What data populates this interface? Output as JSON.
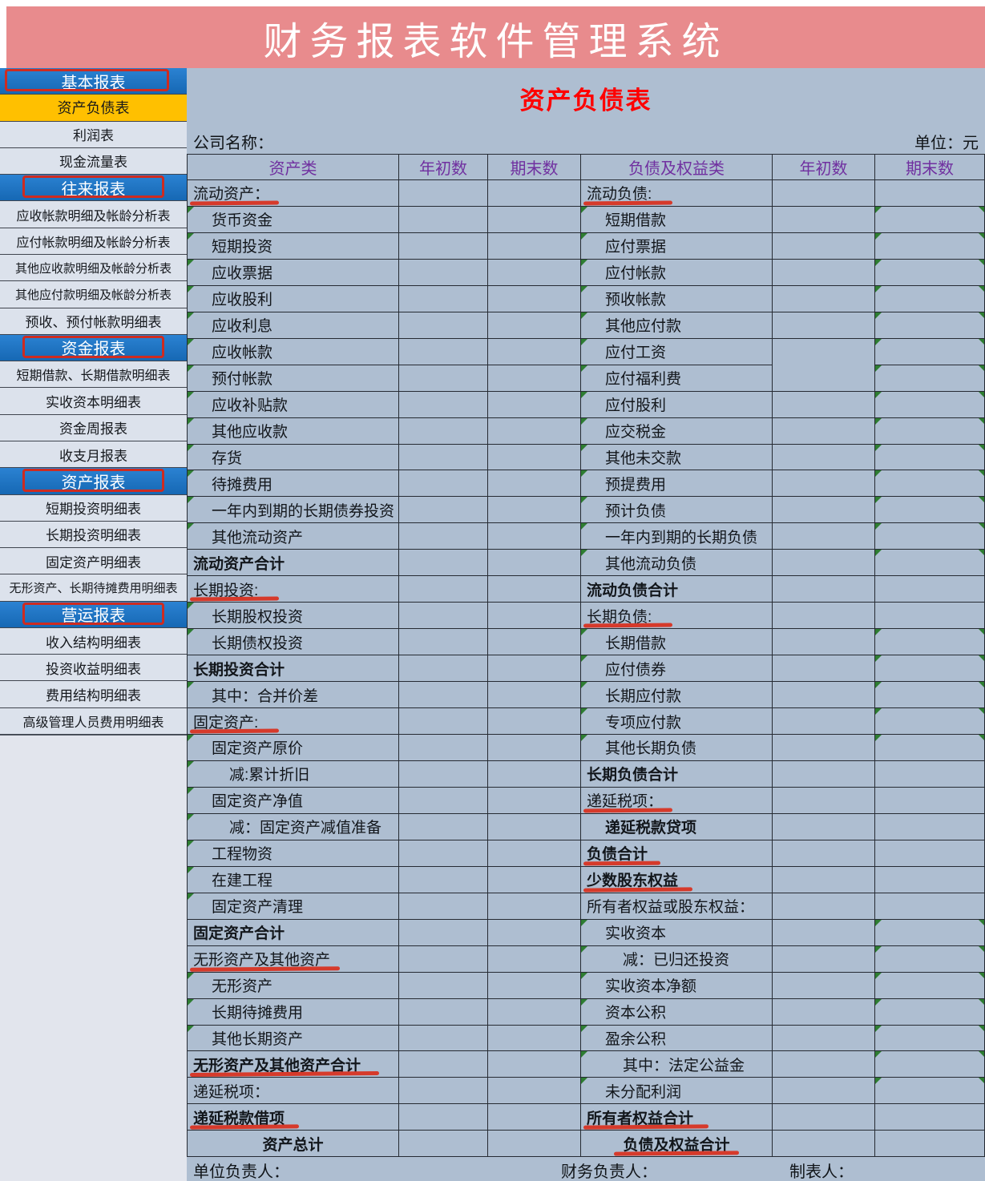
{
  "banner": {
    "title": "财务报表软件管理系统"
  },
  "sidebar": {
    "items": [
      {
        "label": "基本报表",
        "type": "section"
      },
      {
        "label": "资产负债表",
        "type": "active"
      },
      {
        "label": "利润表",
        "type": "item"
      },
      {
        "label": "现金流量表",
        "type": "item"
      },
      {
        "label": "往来报表",
        "type": "section"
      },
      {
        "label": "应收帐款明细及帐龄分析表",
        "type": "item"
      },
      {
        "label": "应付帐款明细及帐龄分析表",
        "type": "item"
      },
      {
        "label": "其他应收款明细及帐龄分析表",
        "type": "item"
      },
      {
        "label": "其他应付款明细及帐龄分析表",
        "type": "item"
      },
      {
        "label": "预收、预付帐款明细表",
        "type": "item"
      },
      {
        "label": "资金报表",
        "type": "section"
      },
      {
        "label": "短期借款、长期借款明细表",
        "type": "item"
      },
      {
        "label": "实收资本明细表",
        "type": "item"
      },
      {
        "label": "资金周报表",
        "type": "item"
      },
      {
        "label": "收支月报表",
        "type": "item"
      },
      {
        "label": "资产报表",
        "type": "section"
      },
      {
        "label": "短期投资明细表",
        "type": "item"
      },
      {
        "label": "长期投资明细表",
        "type": "item"
      },
      {
        "label": "固定资产明细表",
        "type": "item"
      },
      {
        "label": "无形资产、长期待摊费用明细表",
        "type": "item"
      },
      {
        "label": "营运报表",
        "type": "section"
      },
      {
        "label": "收入结构明细表",
        "type": "item"
      },
      {
        "label": "投资收益明细表",
        "type": "item"
      },
      {
        "label": "费用结构明细表",
        "type": "item"
      },
      {
        "label": "高级管理人员费用明细表",
        "type": "item"
      }
    ]
  },
  "sheet": {
    "title": "资产负债表",
    "company_label": "公司名称：",
    "unit_label": "单位：元",
    "columns": [
      "资产类",
      "年初数",
      "期末数",
      "负债及权益类",
      "年初数",
      "期末数"
    ],
    "rows": [
      {
        "asset": {
          "label": "流动资产：",
          "underline": true
        },
        "liability": {
          "label": "流动负债:",
          "underline": true
        }
      },
      {
        "asset": {
          "label": "货币资金",
          "indent": 1,
          "marker": true
        },
        "liability": {
          "label": "短期借款",
          "indent": 1,
          "marker": true
        }
      },
      {
        "asset": {
          "label": "短期投资",
          "indent": 1,
          "marker": true
        },
        "liability": {
          "label": "应付票据",
          "indent": 1,
          "marker": true
        }
      },
      {
        "asset": {
          "label": "应收票据",
          "indent": 1,
          "marker": true
        },
        "liability": {
          "label": "应付帐款",
          "indent": 1,
          "marker": true
        }
      },
      {
        "asset": {
          "label": "应收股利",
          "indent": 1,
          "marker": true
        },
        "liability": {
          "label": "预收帐款",
          "indent": 1,
          "marker": true
        }
      },
      {
        "asset": {
          "label": "应收利息",
          "indent": 1,
          "marker": true
        },
        "liability": {
          "label": "其他应付款",
          "indent": 1,
          "marker": true
        }
      },
      {
        "asset": {
          "label": "应收帐款",
          "indent": 1,
          "marker": true
        },
        "liability": {
          "label": "应付工资",
          "indent": 1,
          "marker": true,
          "mergeDown": true
        }
      },
      {
        "asset": {
          "label": "预付帐款",
          "indent": 1,
          "marker": true
        },
        "liability": {
          "label": "应付福利费",
          "indent": 1,
          "marker": true
        }
      },
      {
        "asset": {
          "label": "应收补贴款",
          "indent": 1,
          "marker": true
        },
        "liability": {
          "label": "应付股利",
          "indent": 1,
          "marker": true
        }
      },
      {
        "asset": {
          "label": "其他应收款",
          "indent": 1,
          "marker": true
        },
        "liability": {
          "label": "应交税金",
          "indent": 1,
          "marker": true
        }
      },
      {
        "asset": {
          "label": "存货",
          "indent": 1,
          "marker": true
        },
        "liability": {
          "label": "其他未交款",
          "indent": 1,
          "marker": true
        }
      },
      {
        "asset": {
          "label": "待摊费用",
          "indent": 1,
          "marker": true
        },
        "liability": {
          "label": "预提费用",
          "indent": 1,
          "marker": true
        }
      },
      {
        "asset": {
          "label": "一年内到期的长期债券投资",
          "indent": 1,
          "marker": true
        },
        "liability": {
          "label": "预计负债",
          "indent": 1,
          "marker": true
        }
      },
      {
        "asset": {
          "label": "其他流动资产",
          "indent": 1,
          "marker": true
        },
        "liability": {
          "label": "一年内到期的长期负债",
          "indent": 1,
          "marker": true
        }
      },
      {
        "asset": {
          "label": "流动资产合计",
          "bold": true
        },
        "liability": {
          "label": "其他流动负债",
          "indent": 1,
          "marker": true
        }
      },
      {
        "asset": {
          "label": "长期投资:",
          "underline": true
        },
        "liability": {
          "label": "流动负债合计",
          "bold": true
        }
      },
      {
        "asset": {
          "label": "长期股权投资",
          "indent": 1,
          "marker": true
        },
        "liability": {
          "label": "长期负债:",
          "underline": true
        }
      },
      {
        "asset": {
          "label": "长期债权投资",
          "indent": 1,
          "marker": true
        },
        "liability": {
          "label": "长期借款",
          "indent": 1,
          "marker": true
        }
      },
      {
        "asset": {
          "label": "长期投资合计",
          "bold": true
        },
        "liability": {
          "label": "应付债券",
          "indent": 1,
          "marker": true
        }
      },
      {
        "asset": {
          "label": "其中：合并价差",
          "indent": 1,
          "marker": true
        },
        "liability": {
          "label": "长期应付款",
          "indent": 1,
          "marker": true
        }
      },
      {
        "asset": {
          "label": "固定资产:",
          "underline": true
        },
        "liability": {
          "label": "专项应付款",
          "indent": 1,
          "marker": true
        }
      },
      {
        "asset": {
          "label": "固定资产原价",
          "indent": 1,
          "marker": true
        },
        "liability": {
          "label": "其他长期负债",
          "indent": 1,
          "marker": true
        }
      },
      {
        "asset": {
          "label": "减:累计折旧",
          "indent": 2,
          "marker": true
        },
        "liability": {
          "label": "长期负债合计",
          "bold": true
        }
      },
      {
        "asset": {
          "label": "固定资产净值",
          "indent": 1,
          "marker": true
        },
        "liability": {
          "label": "递延税项：",
          "underline": true
        }
      },
      {
        "asset": {
          "label": "减：固定资产减值准备",
          "indent": 2,
          "marker": true
        },
        "liability": {
          "label": "递延税款贷项",
          "indent": 1,
          "bold": true
        }
      },
      {
        "asset": {
          "label": "工程物资",
          "indent": 1,
          "marker": true
        },
        "liability": {
          "label": "负债合计",
          "bold": true,
          "underline": true
        }
      },
      {
        "asset": {
          "label": "在建工程",
          "indent": 1,
          "marker": true
        },
        "liability": {
          "label": "少数股东权益",
          "bold": true,
          "underline": true
        }
      },
      {
        "asset": {
          "label": "固定资产清理",
          "indent": 1,
          "marker": true
        },
        "liability": {
          "label": "所有者权益或股东权益："
        }
      },
      {
        "asset": {
          "label": "固定资产合计",
          "bold": true
        },
        "liability": {
          "label": "实收资本",
          "indent": 1,
          "marker": true
        }
      },
      {
        "asset": {
          "label": "无形资产及其他资产",
          "underline": true
        },
        "liability": {
          "label": "减：已归还投资",
          "indent": 2,
          "marker": true
        }
      },
      {
        "asset": {
          "label": "无形资产",
          "indent": 1,
          "marker": true
        },
        "liability": {
          "label": "实收资本净额",
          "indent": 1,
          "marker": true
        }
      },
      {
        "asset": {
          "label": "长期待摊费用",
          "indent": 1,
          "marker": true
        },
        "liability": {
          "label": "资本公积",
          "indent": 1,
          "marker": true
        }
      },
      {
        "asset": {
          "label": "其他长期资产",
          "indent": 1,
          "marker": true
        },
        "liability": {
          "label": "盈余公积",
          "indent": 1,
          "marker": true
        }
      },
      {
        "asset": {
          "label": "无形资产及其他资产合计",
          "bold": true,
          "underline": true
        },
        "liability": {
          "label": "其中：法定公益金",
          "indent": 2,
          "marker": true
        }
      },
      {
        "asset": {
          "label": "递延税项："
        },
        "liability": {
          "label": "未分配利润",
          "indent": 1,
          "marker": true
        }
      },
      {
        "asset": {
          "label": "递延税款借项",
          "bold": true,
          "underline": true
        },
        "liability": {
          "label": "所有者权益合计",
          "bold": true,
          "underline": true
        }
      },
      {
        "asset": {
          "label": "资产总计",
          "bold": true,
          "center": true
        },
        "liability": {
          "label": "负债及权益合计",
          "bold": true,
          "center": true,
          "underline": true
        }
      }
    ],
    "footer": [
      "单位负责人：",
      "财务负责人：",
      "制表人："
    ]
  }
}
